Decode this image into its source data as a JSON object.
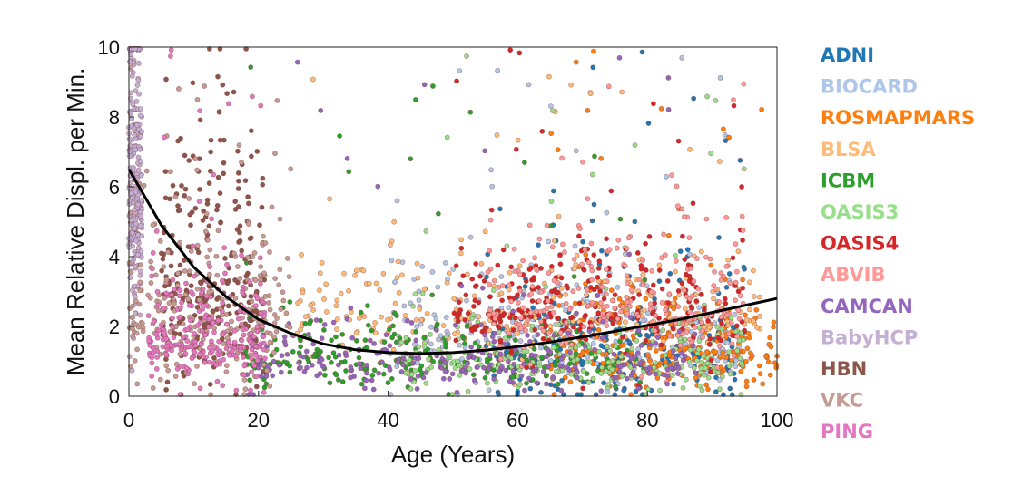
{
  "chart_data": {
    "type": "scatter",
    "title": "",
    "xlabel": "Age (Years)",
    "ylabel": "Mean Relative Displ. per Min.",
    "xlim": [
      0,
      100
    ],
    "ylim": [
      0,
      10
    ],
    "xticks": [
      0,
      20,
      40,
      60,
      80,
      100
    ],
    "yticks": [
      0,
      2,
      4,
      6,
      8,
      10
    ],
    "grid": false,
    "legend_position": "right",
    "series": [
      {
        "name": "ADNI",
        "color": "#1f77b4",
        "age_range": [
          55,
          95
        ],
        "motion_center": 1.2,
        "motion_spread": 1.8
      },
      {
        "name": "BIOCARD",
        "color": "#aec7e8",
        "age_range": [
          40,
          95
        ],
        "motion_center": 1.5,
        "motion_spread": 1.5
      },
      {
        "name": "ROSMAPMARS",
        "color": "#ff7f0e",
        "age_range": [
          65,
          100
        ],
        "motion_center": 1.3,
        "motion_spread": 1.2
      },
      {
        "name": "BLSA",
        "color": "#ffbb78",
        "age_range": [
          25,
          98
        ],
        "motion_center": 2.3,
        "motion_spread": 1.2
      },
      {
        "name": "ICBM",
        "color": "#2ca02c",
        "age_range": [
          18,
          80
        ],
        "motion_center": 1.0,
        "motion_spread": 0.8
      },
      {
        "name": "OASIS3",
        "color": "#98df8a",
        "age_range": [
          42,
          95
        ],
        "motion_center": 1.0,
        "motion_spread": 1.0
      },
      {
        "name": "OASIS4",
        "color": "#d62728",
        "age_range": [
          50,
          95
        ],
        "motion_center": 2.4,
        "motion_spread": 1.3
      },
      {
        "name": "ABVIB",
        "color": "#ff9896",
        "age_range": [
          55,
          95
        ],
        "motion_center": 2.5,
        "motion_spread": 1.5
      },
      {
        "name": "CAMCAN",
        "color": "#9467bd",
        "age_range": [
          18,
          88
        ],
        "motion_center": 0.9,
        "motion_spread": 0.8
      },
      {
        "name": "BabyHCP",
        "color": "#c5b0d5",
        "age_range": [
          0,
          2
        ],
        "motion_center": 6.0,
        "motion_spread": 3.5
      },
      {
        "name": "HBN",
        "color": "#8c564b",
        "age_range": [
          5,
          21
        ],
        "motion_center": 3.0,
        "motion_spread": 3.0
      },
      {
        "name": "VKC",
        "color": "#c49c94",
        "age_range": [
          0,
          25
        ],
        "motion_center": 2.2,
        "motion_spread": 2.0
      },
      {
        "name": "PING",
        "color": "#e377c2",
        "age_range": [
          3,
          21
        ],
        "motion_center": 1.6,
        "motion_spread": 1.3
      }
    ],
    "fit_curve": {
      "color": "#000000",
      "x": [
        0,
        5,
        10,
        15,
        20,
        25,
        30,
        35,
        40,
        45,
        50,
        55,
        60,
        65,
        70,
        75,
        80,
        85,
        90,
        95,
        100
      ],
      "y": [
        6.5,
        4.9,
        3.7,
        2.85,
        2.2,
        1.8,
        1.5,
        1.33,
        1.25,
        1.22,
        1.25,
        1.32,
        1.42,
        1.55,
        1.7,
        1.86,
        2.03,
        2.2,
        2.4,
        2.6,
        2.8
      ]
    }
  }
}
